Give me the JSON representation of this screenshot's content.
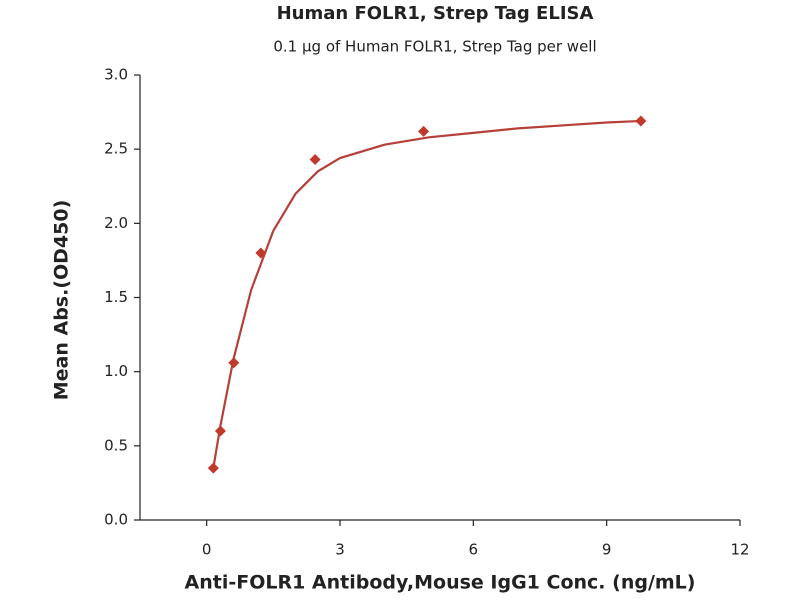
{
  "chart_data": {
    "type": "scatter",
    "title": "Human FOLR1, Strep Tag ELISA",
    "subtitle": "0.1 μg of Human FOLR1, Strep Tag per well",
    "x_label": "Anti-FOLR1 Antibody,Mouse IgG1 Conc. (ng/mL)",
    "y_label": "Mean Abs.(OD450)",
    "x": [
      0.15,
      0.31,
      0.61,
      1.22,
      2.44,
      4.88,
      9.77
    ],
    "values": [
      0.35,
      0.6,
      1.06,
      1.8,
      2.43,
      2.62,
      2.69
    ],
    "color": "#c0392b",
    "curve": {
      "color": "#b5403a",
      "x": [
        0.15,
        0.3,
        0.6,
        1.0,
        1.5,
        2.0,
        2.5,
        3,
        4,
        5,
        6,
        7,
        8,
        9,
        9.77
      ],
      "values": [
        0.35,
        0.62,
        1.08,
        1.55,
        1.95,
        2.2,
        2.35,
        2.44,
        2.53,
        2.58,
        2.61,
        2.64,
        2.66,
        2.68,
        2.69
      ]
    },
    "xlim": [
      -1.5,
      12
    ],
    "xticks": [
      0,
      3,
      6,
      9,
      12
    ],
    "ylim": [
      0,
      3
    ],
    "yticks": [
      {
        "value": 0,
        "label": "0.0"
      },
      {
        "value": 0.5,
        "label": "0.5"
      },
      {
        "value": 1,
        "label": "1.0"
      },
      {
        "value": 1.5,
        "label": "1.5"
      },
      {
        "value": 2,
        "label": "2.0"
      },
      {
        "value": 2.5,
        "label": "2.5"
      },
      {
        "value": 3,
        "label": "3.0"
      }
    ]
  }
}
